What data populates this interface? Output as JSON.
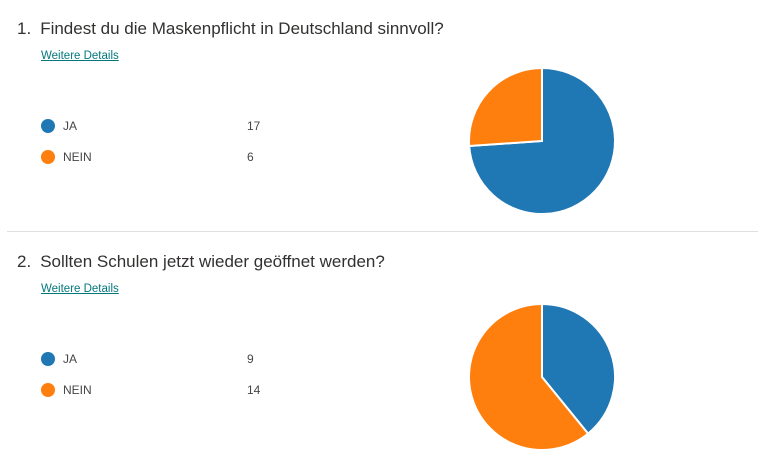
{
  "questions": [
    {
      "number": "1.",
      "title": "Findest du die Maskenpflicht in Deutschland sinnvoll?",
      "details_link": "Weitere Details",
      "legend": [
        {
          "label": "JA",
          "count": "17"
        },
        {
          "label": "NEIN",
          "count": "6"
        }
      ]
    },
    {
      "number": "2.",
      "title": "Sollten Schulen jetzt wieder geöffnet werden?",
      "details_link": "Weitere Details",
      "legend": [
        {
          "label": "JA",
          "count": "9"
        },
        {
          "label": "NEIN",
          "count": "14"
        }
      ]
    }
  ],
  "colors": {
    "ja": "#1f77b4",
    "nein": "#ff7f0e",
    "link": "#03787c"
  },
  "chart_data": [
    {
      "type": "pie",
      "categories": [
        "JA",
        "NEIN"
      ],
      "values": [
        17,
        6
      ]
    },
    {
      "type": "pie",
      "categories": [
        "JA",
        "NEIN"
      ],
      "values": [
        9,
        14
      ]
    }
  ]
}
